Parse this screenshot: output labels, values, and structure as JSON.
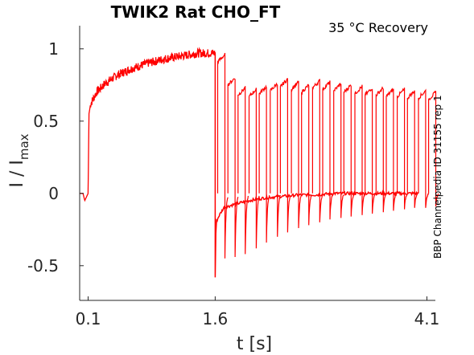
{
  "chart_data": {
    "type": "line",
    "title": "TWIK2  Rat  CHO_FT",
    "annotation": "35 °C  Recovery",
    "side_label": "BBP Channelpedia ID 31155 rep 1",
    "xlabel": "t [s]",
    "ylabel_main": "I / I",
    "ylabel_sub": "max",
    "x_ticks": [
      0.1,
      1.6,
      4.1
    ],
    "x_tick_labels": [
      "0.1",
      "1.6",
      "4.1"
    ],
    "y_ticks": [
      -0.5,
      0,
      0.5,
      1
    ],
    "y_tick_labels": [
      "-0.5",
      "0",
      "0.5",
      "1"
    ],
    "xlim": [
      0.0,
      4.2
    ],
    "ylim": [
      -0.74,
      1.16
    ],
    "grid": false,
    "legend": "none",
    "line_color": "#ff0000",
    "series": [
      {
        "x": [
          0.0,
          0.04,
          0.06,
          0.1,
          0.11,
          0.13,
          0.2,
          0.3,
          0.45,
          0.6,
          0.8,
          1.0,
          1.2,
          1.4,
          1.6
        ],
        "y": [
          0.0,
          0.0,
          -0.05,
          0.0,
          0.55,
          0.62,
          0.7,
          0.76,
          0.82,
          0.86,
          0.9,
          0.93,
          0.95,
          0.97,
          0.97
        ]
      },
      {
        "x": [
          1.6,
          1.61,
          1.65,
          1.7,
          1.8,
          2.0,
          2.2,
          2.4,
          2.6,
          2.8,
          3.0,
          3.2,
          3.4,
          3.6,
          3.8,
          4.0
        ],
        "y": [
          -0.58,
          -0.2,
          -0.15,
          -0.1,
          -0.08,
          -0.05,
          -0.03,
          -0.02,
          -0.01,
          -0.01,
          0.0,
          0.0,
          0.0,
          0.0,
          0.0,
          0.0
        ]
      }
    ],
    "recovery_pulses": {
      "start_times": [
        1.63,
        1.75,
        1.87,
        2.0,
        2.12,
        2.25,
        2.37,
        2.5,
        2.62,
        2.75,
        2.87,
        3.0,
        3.12,
        3.25,
        3.37,
        3.5,
        3.62,
        3.75,
        3.87,
        4.0,
        4.12
      ],
      "peak_values": [
        0.96,
        0.8,
        0.73,
        0.72,
        0.74,
        0.76,
        0.79,
        0.77,
        0.75,
        0.78,
        0.77,
        0.76,
        0.75,
        0.74,
        0.73,
        0.73,
        0.72,
        0.72,
        0.71,
        0.71,
        0.7
      ],
      "tail_values": [
        -0.45,
        -0.44,
        -0.42,
        -0.38,
        -0.34,
        -0.3,
        -0.27,
        -0.24,
        -0.22,
        -0.2,
        -0.18,
        -0.17,
        -0.16,
        -0.15,
        -0.14,
        -0.13,
        -0.12,
        -0.11,
        -0.1,
        -0.1,
        -0.09
      ]
    }
  }
}
